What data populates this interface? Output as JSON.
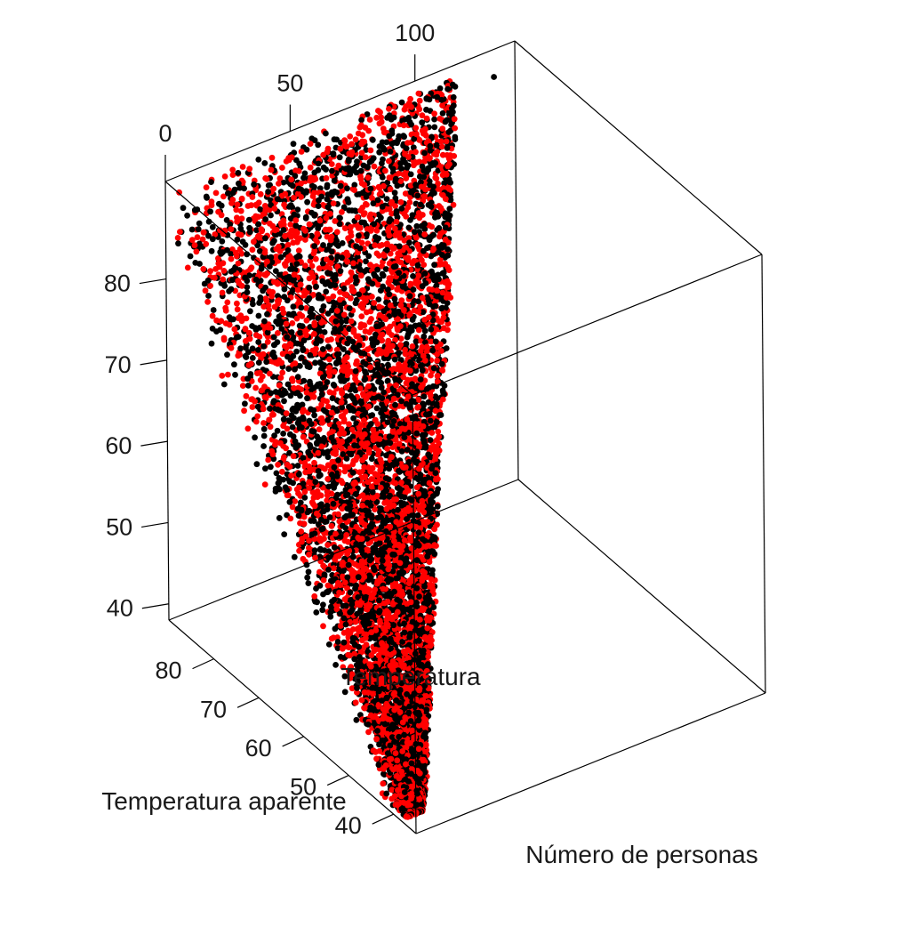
{
  "chart_data": {
    "type": "scatter",
    "dimensions": 3,
    "title": "",
    "axes": {
      "x": {
        "label": "Temperatura aparente",
        "range": [
          35,
          90
        ],
        "ticks": [
          "40",
          "50",
          "60",
          "70",
          "80"
        ]
      },
      "y": {
        "label": "Número de personas",
        "range": [
          0,
          140
        ],
        "ticks": [
          "0",
          "50",
          "100"
        ]
      },
      "z": {
        "label": "Temperatura",
        "range": [
          38,
          92
        ],
        "ticks": [
          "40",
          "50",
          "60",
          "70",
          "80"
        ]
      }
    },
    "series": [
      {
        "color": "#000000",
        "point_count_estimate": 4000
      },
      {
        "color": "#ff0000",
        "point_count_estimate": 4000
      }
    ],
    "points_note": "Dense cloud of thousands of points; values follow temperatura ≈ temperatura aparente ± noise, with Número de personas spread roughly 0–110 and one outlier near 128.",
    "sample_points": [
      {
        "temperatura_aparente": 40,
        "numero_personas": 2,
        "temperatura": 42,
        "color": "#ff0000"
      },
      {
        "temperatura_aparente": 45,
        "numero_personas": 5,
        "temperatura": 48,
        "color": "#000000"
      },
      {
        "temperatura_aparente": 55,
        "numero_personas": 20,
        "temperatura": 56,
        "color": "#ff0000"
      },
      {
        "temperatura_aparente": 62,
        "numero_personas": 45,
        "temperatura": 63,
        "color": "#000000"
      },
      {
        "temperatura_aparente": 70,
        "numero_personas": 60,
        "temperatura": 71,
        "color": "#ff0000"
      },
      {
        "temperatura_aparente": 78,
        "numero_personas": 80,
        "temperatura": 80,
        "color": "#000000"
      },
      {
        "temperatura_aparente": 84,
        "numero_personas": 95,
        "temperatura": 86,
        "color": "#ff0000"
      },
      {
        "temperatura_aparente": 88,
        "numero_personas": 128,
        "temperatura": 90,
        "color": "#000000"
      }
    ],
    "grid": false,
    "legend": "none"
  }
}
